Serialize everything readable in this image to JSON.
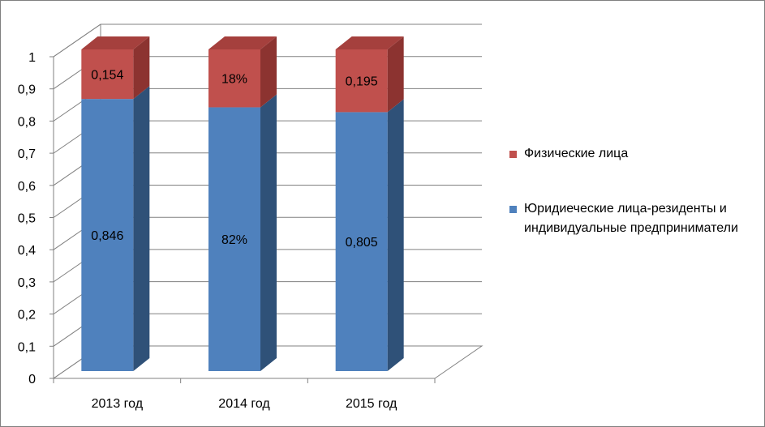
{
  "chart_data": {
    "type": "bar",
    "stacked": true,
    "three_d": true,
    "categories": [
      "2013 год",
      "2014 год",
      "2015 год"
    ],
    "series": [
      {
        "name": "Юридиеческие лица-резиденты и индивидуальные предприниматели",
        "values": [
          0.846,
          0.82,
          0.805
        ],
        "labels": [
          "0,846",
          "82%",
          "0,805"
        ],
        "color": "#4F81BD",
        "side_color": "#2F5178",
        "top_color": "#4F81BD"
      },
      {
        "name": "Физические лица",
        "values": [
          0.154,
          0.18,
          0.195
        ],
        "labels": [
          "0,154",
          "18%",
          "0,195"
        ],
        "color": "#C0504D",
        "side_color": "#8C3330",
        "top_color": "#A5403D"
      }
    ],
    "y_ticks": [
      "0",
      "0,1",
      "0,2",
      "0,3",
      "0,4",
      "0,5",
      "0,6",
      "0,7",
      "0,8",
      "0,9",
      "1"
    ],
    "ylim": [
      0,
      1
    ],
    "grid": true,
    "legend_position": "right"
  }
}
